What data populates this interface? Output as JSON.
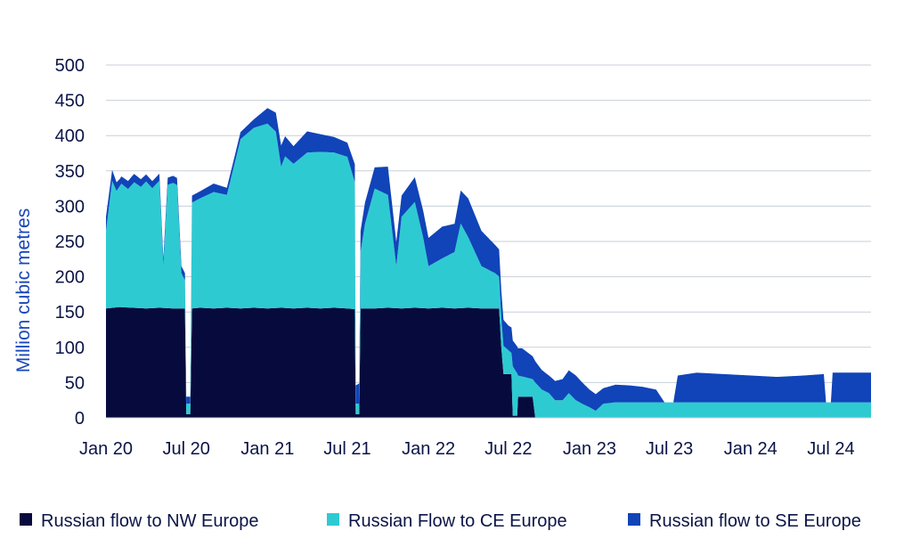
{
  "chart_data": {
    "type": "area",
    "stacked": true,
    "ylabel": "Million cubic metres",
    "ylim": [
      0,
      500
    ],
    "yticks": [
      0,
      50,
      100,
      150,
      200,
      250,
      300,
      350,
      400,
      450,
      500
    ],
    "ytick_labels": [
      "0",
      "50",
      "100",
      "150",
      "200",
      "250",
      "300",
      "350",
      "400",
      "450",
      "500"
    ],
    "xlim": [
      "2020-01-01",
      "2024-09-30"
    ],
    "xticks": [
      "2020-01-01",
      "2020-07-01",
      "2021-01-01",
      "2021-07-01",
      "2022-01-01",
      "2022-07-01",
      "2023-01-01",
      "2023-07-01",
      "2024-01-01",
      "2024-07-01"
    ],
    "xtick_labels": [
      "Jan 20",
      "Jul 20",
      "Jan 21",
      "Jul 21",
      "Jan 22",
      "Jul 22",
      "Jan 23",
      "Jul 23",
      "Jan 24",
      "Jul 24"
    ],
    "grid": "horizontal",
    "legend_position": "bottom",
    "series": [
      {
        "name": "Russian flow to NW Europe",
        "color": "#070a3d",
        "points": [
          [
            "2020-01-01",
            155
          ],
          [
            "2020-02-01",
            157
          ],
          [
            "2020-03-01",
            156
          ],
          [
            "2020-04-01",
            155
          ],
          [
            "2020-05-01",
            156
          ],
          [
            "2020-06-01",
            155
          ],
          [
            "2020-06-28",
            155
          ],
          [
            "2020-07-01",
            5
          ],
          [
            "2020-07-10",
            5
          ],
          [
            "2020-07-14",
            155
          ],
          [
            "2020-08-01",
            156
          ],
          [
            "2020-09-01",
            155
          ],
          [
            "2020-10-01",
            156
          ],
          [
            "2020-11-01",
            155
          ],
          [
            "2020-12-01",
            156
          ],
          [
            "2021-01-01",
            155
          ],
          [
            "2021-02-01",
            156
          ],
          [
            "2021-03-01",
            155
          ],
          [
            "2021-04-01",
            156
          ],
          [
            "2021-05-01",
            155
          ],
          [
            "2021-06-01",
            156
          ],
          [
            "2021-07-01",
            155
          ],
          [
            "2021-07-18",
            154
          ],
          [
            "2021-07-20",
            5
          ],
          [
            "2021-07-28",
            5
          ],
          [
            "2021-07-31",
            155
          ],
          [
            "2021-09-01",
            155
          ],
          [
            "2021-10-01",
            156
          ],
          [
            "2021-11-01",
            155
          ],
          [
            "2021-12-01",
            156
          ],
          [
            "2022-01-01",
            155
          ],
          [
            "2022-02-01",
            156
          ],
          [
            "2022-03-01",
            155
          ],
          [
            "2022-04-01",
            156
          ],
          [
            "2022-05-01",
            155
          ],
          [
            "2022-06-10",
            155
          ],
          [
            "2022-06-15",
            100
          ],
          [
            "2022-06-20",
            62
          ],
          [
            "2022-07-08",
            62
          ],
          [
            "2022-07-11",
            3
          ],
          [
            "2022-07-21",
            3
          ],
          [
            "2022-07-23",
            30
          ],
          [
            "2022-08-25",
            30
          ],
          [
            "2022-08-31",
            0
          ],
          [
            "2024-09-30",
            0
          ]
        ]
      },
      {
        "name": "Russian Flow to CE Europe",
        "color": "#2ecad2",
        "points": [
          [
            "2020-01-01",
            110
          ],
          [
            "2020-01-05",
            130
          ],
          [
            "2020-01-15",
            180
          ],
          [
            "2020-01-25",
            165
          ],
          [
            "2020-02-05",
            175
          ],
          [
            "2020-02-20",
            168
          ],
          [
            "2020-03-05",
            178
          ],
          [
            "2020-03-20",
            172
          ],
          [
            "2020-04-01",
            180
          ],
          [
            "2020-04-15",
            170
          ],
          [
            "2020-05-01",
            180
          ],
          [
            "2020-05-10",
            60
          ],
          [
            "2020-05-20",
            175
          ],
          [
            "2020-06-01",
            178
          ],
          [
            "2020-06-10",
            175
          ],
          [
            "2020-06-20",
            50
          ],
          [
            "2020-06-28",
            40
          ],
          [
            "2020-07-01",
            15
          ],
          [
            "2020-07-10",
            15
          ],
          [
            "2020-07-14",
            150
          ],
          [
            "2020-08-01",
            155
          ],
          [
            "2020-09-01",
            165
          ],
          [
            "2020-10-01",
            160
          ],
          [
            "2020-11-01",
            240
          ],
          [
            "2020-12-01",
            255
          ],
          [
            "2021-01-01",
            262
          ],
          [
            "2021-01-20",
            250
          ],
          [
            "2021-02-01",
            200
          ],
          [
            "2021-02-10",
            215
          ],
          [
            "2021-03-01",
            205
          ],
          [
            "2021-04-01",
            220
          ],
          [
            "2021-05-01",
            222
          ],
          [
            "2021-06-01",
            220
          ],
          [
            "2021-07-01",
            215
          ],
          [
            "2021-07-18",
            180
          ],
          [
            "2021-07-20",
            15
          ],
          [
            "2021-07-28",
            15
          ],
          [
            "2021-07-31",
            80
          ],
          [
            "2021-08-10",
            120
          ],
          [
            "2021-09-01",
            170
          ],
          [
            "2021-10-01",
            160
          ],
          [
            "2021-10-20",
            60
          ],
          [
            "2021-11-01",
            130
          ],
          [
            "2021-12-01",
            150
          ],
          [
            "2021-12-20",
            100
          ],
          [
            "2022-01-01",
            60
          ],
          [
            "2022-02-01",
            70
          ],
          [
            "2022-03-01",
            80
          ],
          [
            "2022-03-15",
            120
          ],
          [
            "2022-04-01",
            100
          ],
          [
            "2022-05-01",
            60
          ],
          [
            "2022-06-01",
            50
          ],
          [
            "2022-06-20",
            40
          ],
          [
            "2022-07-08",
            30
          ],
          [
            "2022-07-11",
            70
          ],
          [
            "2022-07-21",
            60
          ],
          [
            "2022-07-23",
            30
          ],
          [
            "2022-08-25",
            25
          ],
          [
            "2022-08-31",
            50
          ],
          [
            "2022-09-15",
            40
          ],
          [
            "2022-10-01",
            35
          ],
          [
            "2022-10-15",
            25
          ],
          [
            "2022-11-01",
            25
          ],
          [
            "2022-11-15",
            35
          ],
          [
            "2022-12-01",
            25
          ],
          [
            "2022-12-15",
            20
          ],
          [
            "2023-01-01",
            15
          ],
          [
            "2023-01-15",
            10
          ],
          [
            "2023-02-01",
            20
          ],
          [
            "2023-03-01",
            22
          ],
          [
            "2023-04-01",
            22
          ],
          [
            "2024-09-30",
            22
          ]
        ]
      },
      {
        "name": "Russian flow to SE Europe",
        "color": "#1044b8",
        "points": [
          [
            "2020-01-01",
            20
          ],
          [
            "2020-02-01",
            10
          ],
          [
            "2020-03-01",
            12
          ],
          [
            "2020-04-01",
            10
          ],
          [
            "2020-05-01",
            10
          ],
          [
            "2020-06-01",
            10
          ],
          [
            "2020-07-01",
            10
          ],
          [
            "2020-08-01",
            10
          ],
          [
            "2020-09-01",
            12
          ],
          [
            "2020-10-01",
            10
          ],
          [
            "2020-11-01",
            10
          ],
          [
            "2020-12-01",
            12
          ],
          [
            "2021-01-01",
            22
          ],
          [
            "2021-02-01",
            30
          ],
          [
            "2021-03-01",
            25
          ],
          [
            "2021-04-01",
            30
          ],
          [
            "2021-05-01",
            25
          ],
          [
            "2021-06-01",
            22
          ],
          [
            "2021-07-01",
            20
          ],
          [
            "2021-08-01",
            30
          ],
          [
            "2021-09-01",
            30
          ],
          [
            "2021-10-01",
            40
          ],
          [
            "2021-11-01",
            30
          ],
          [
            "2021-12-01",
            35
          ],
          [
            "2022-01-01",
            40
          ],
          [
            "2022-02-01",
            45
          ],
          [
            "2022-03-01",
            40
          ],
          [
            "2022-04-01",
            55
          ],
          [
            "2022-05-01",
            50
          ],
          [
            "2022-06-01",
            40
          ],
          [
            "2022-07-01",
            35
          ],
          [
            "2022-08-01",
            40
          ],
          [
            "2022-09-01",
            30
          ],
          [
            "2022-10-01",
            25
          ],
          [
            "2022-11-01",
            30
          ],
          [
            "2022-12-01",
            35
          ],
          [
            "2023-01-01",
            25
          ],
          [
            "2023-02-01",
            22
          ],
          [
            "2023-03-01",
            25
          ],
          [
            "2023-04-01",
            24
          ],
          [
            "2023-05-01",
            22
          ],
          [
            "2023-06-01",
            18
          ],
          [
            "2023-06-20",
            0
          ],
          [
            "2023-07-10",
            0
          ],
          [
            "2023-07-20",
            38
          ],
          [
            "2023-09-01",
            42
          ],
          [
            "2023-11-01",
            40
          ],
          [
            "2024-01-01",
            38
          ],
          [
            "2024-03-01",
            36
          ],
          [
            "2024-05-01",
            38
          ],
          [
            "2024-06-15",
            40
          ],
          [
            "2024-06-20",
            0
          ],
          [
            "2024-07-01",
            0
          ],
          [
            "2024-07-05",
            42
          ],
          [
            "2024-09-30",
            42
          ]
        ]
      }
    ]
  }
}
